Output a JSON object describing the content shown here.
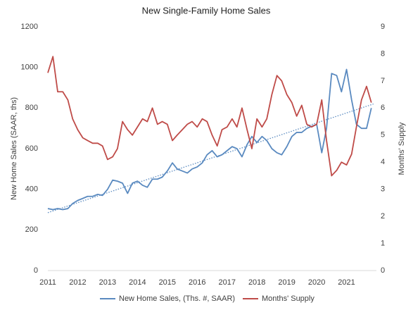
{
  "chart_data": {
    "type": "line",
    "title": "New Single-Family Home Sales",
    "y_label": "New Home Sales (SAAR, ths)",
    "y2_label": "Months' Supply",
    "x": [
      2011,
      2011.17,
      2011.33,
      2011.5,
      2011.67,
      2011.83,
      2012,
      2012.17,
      2012.33,
      2012.5,
      2012.67,
      2012.83,
      2013,
      2013.17,
      2013.33,
      2013.5,
      2013.67,
      2013.83,
      2014,
      2014.17,
      2014.33,
      2014.5,
      2014.67,
      2014.83,
      2015,
      2015.17,
      2015.33,
      2015.5,
      2015.67,
      2015.83,
      2016,
      2016.17,
      2016.33,
      2016.5,
      2016.67,
      2016.83,
      2017,
      2017.17,
      2017.33,
      2017.5,
      2017.67,
      2017.83,
      2018,
      2018.17,
      2018.33,
      2018.5,
      2018.67,
      2018.83,
      2019,
      2019.17,
      2019.33,
      2019.5,
      2019.67,
      2019.83,
      2020,
      2020.17,
      2020.33,
      2020.5,
      2020.67,
      2020.83,
      2021,
      2021.17,
      2021.33,
      2021.5,
      2021.67,
      2021.83
    ],
    "series": [
      {
        "name": "New Home Sales, (Ths. #, SAAR)",
        "color": "#5a8ac0",
        "axis": "y",
        "values": [
          305,
          300,
          305,
          300,
          305,
          330,
          345,
          355,
          365,
          365,
          375,
          370,
          400,
          445,
          440,
          430,
          380,
          430,
          440,
          420,
          410,
          450,
          450,
          460,
          490,
          530,
          500,
          490,
          480,
          500,
          510,
          530,
          570,
          590,
          560,
          570,
          590,
          610,
          600,
          560,
          620,
          660,
          630,
          660,
          640,
          600,
          580,
          570,
          610,
          660,
          680,
          680,
          700,
          710,
          720,
          580,
          700,
          970,
          960,
          880,
          990,
          840,
          720,
          700,
          700,
          800
        ]
      },
      {
        "name": "Months' Supply",
        "color": "#bf4b48",
        "axis": "y2",
        "values": [
          7.3,
          7.9,
          6.6,
          6.6,
          6.3,
          5.6,
          5.2,
          4.9,
          4.8,
          4.7,
          4.7,
          4.6,
          4.1,
          4.2,
          4.5,
          5.5,
          5.2,
          5.0,
          5.3,
          5.6,
          5.5,
          6.0,
          5.4,
          5.5,
          5.4,
          4.8,
          5.0,
          5.2,
          5.4,
          5.5,
          5.3,
          5.6,
          5.5,
          5.0,
          4.6,
          5.2,
          5.3,
          5.6,
          5.3,
          6.0,
          5.2,
          4.5,
          5.6,
          5.3,
          5.6,
          6.5,
          7.2,
          7.0,
          6.5,
          6.2,
          5.7,
          6.1,
          5.4,
          5.3,
          5.4,
          6.3,
          4.8,
          3.5,
          3.7,
          4.0,
          3.9,
          4.3,
          5.3,
          6.3,
          6.8,
          6.2
        ]
      }
    ],
    "trend": {
      "color": "#5a8ac0",
      "x": [
        2011,
        2021.9
      ],
      "values": [
        285,
        820
      ]
    },
    "xlim": [
      2011,
      2022
    ],
    "xticks": [
      2011,
      2012,
      2013,
      2014,
      2015,
      2016,
      2017,
      2018,
      2019,
      2020,
      2021
    ],
    "ylim": [
      0,
      1200
    ],
    "yticks": [
      0,
      200,
      400,
      600,
      800,
      1000,
      1200
    ],
    "y2lim": [
      0,
      9
    ],
    "y2ticks": [
      0,
      1,
      2,
      3,
      4,
      5,
      6,
      7,
      8,
      9
    ],
    "grid": false,
    "legend": "bottom"
  }
}
